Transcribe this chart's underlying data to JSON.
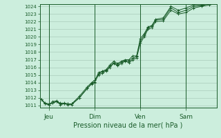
{
  "background_color": "#cceedd",
  "grid_color": "#aaccbb",
  "line_color": "#1a5c2a",
  "marker_color": "#1a5c2a",
  "xlabel": "Pression niveau de la mer( hPa )",
  "ylim": [
    1011,
    1024
  ],
  "yticks": [
    1011,
    1012,
    1013,
    1014,
    1015,
    1016,
    1017,
    1018,
    1019,
    1020,
    1021,
    1022,
    1023,
    1024
  ],
  "xtick_labels": [
    "Jeu",
    "Dim",
    "Ven",
    "Sam"
  ],
  "xtick_positions": [
    0.5,
    3.5,
    6.5,
    9.5
  ],
  "xlim": [
    -0.1,
    11.5
  ],
  "vlines": [
    0.5,
    3.5,
    6.5,
    9.5
  ],
  "series1_x": [
    0.0,
    0.25,
    0.5,
    0.75,
    1.0,
    1.25,
    1.5,
    1.75,
    2.0,
    2.5,
    3.0,
    3.3,
    3.5,
    3.75,
    4.0,
    4.25,
    4.5,
    4.75,
    5.0,
    5.25,
    5.5,
    5.75,
    6.0,
    6.25,
    6.5,
    6.75,
    7.0,
    7.25,
    7.5,
    8.0,
    8.5,
    9.0,
    9.5,
    10.0,
    10.5,
    11.0
  ],
  "series1_y": [
    1011.8,
    1011.2,
    1011.1,
    1011.3,
    1011.5,
    1011.1,
    1011.2,
    1011.1,
    1011.1,
    1012.0,
    1013.2,
    1013.8,
    1014.0,
    1015.0,
    1015.2,
    1015.5,
    1016.0,
    1016.5,
    1016.2,
    1016.5,
    1016.8,
    1016.6,
    1017.0,
    1017.2,
    1019.2,
    1020.0,
    1021.0,
    1021.2,
    1022.0,
    1022.1,
    1023.5,
    1023.0,
    1023.2,
    1023.8,
    1024.0,
    1024.2
  ],
  "series2_x": [
    0.0,
    0.25,
    0.5,
    0.75,
    1.0,
    1.25,
    1.5,
    1.75,
    2.0,
    2.5,
    3.0,
    3.3,
    3.5,
    3.75,
    4.0,
    4.25,
    4.5,
    4.75,
    5.0,
    5.25,
    5.5,
    5.75,
    6.0,
    6.25,
    6.5,
    6.75,
    7.0,
    7.25,
    7.5,
    8.0,
    8.5,
    9.0,
    9.5,
    10.0,
    10.5,
    11.0
  ],
  "series2_y": [
    1011.8,
    1011.2,
    1011.1,
    1011.5,
    1011.6,
    1011.2,
    1011.2,
    1011.2,
    1011.2,
    1012.2,
    1013.4,
    1014.0,
    1014.3,
    1015.1,
    1015.4,
    1015.6,
    1016.1,
    1016.6,
    1016.3,
    1016.7,
    1016.9,
    1016.8,
    1017.2,
    1017.4,
    1019.5,
    1020.2,
    1021.2,
    1021.4,
    1022.2,
    1022.3,
    1023.8,
    1023.2,
    1023.5,
    1024.0,
    1024.1,
    1024.3
  ],
  "series3_x": [
    0.0,
    0.25,
    0.5,
    0.75,
    1.0,
    1.25,
    1.5,
    1.75,
    2.0,
    2.5,
    3.0,
    3.3,
    3.5,
    3.75,
    4.0,
    4.25,
    4.5,
    4.75,
    5.0,
    5.25,
    5.5,
    5.75,
    6.0,
    6.25,
    6.5,
    6.75,
    7.0,
    7.25,
    7.5,
    8.0,
    8.5,
    9.0,
    9.5,
    10.0,
    10.5,
    11.0
  ],
  "series3_y": [
    1011.8,
    1011.3,
    1011.2,
    1011.3,
    1011.5,
    1011.3,
    1011.3,
    1011.2,
    1011.2,
    1012.0,
    1013.2,
    1013.9,
    1014.1,
    1015.3,
    1015.5,
    1015.7,
    1016.3,
    1016.8,
    1016.5,
    1016.8,
    1017.0,
    1017.0,
    1017.5,
    1017.5,
    1019.8,
    1020.4,
    1021.3,
    1021.5,
    1022.3,
    1022.5,
    1024.0,
    1023.5,
    1023.8,
    1024.2,
    1024.2,
    1024.4
  ]
}
